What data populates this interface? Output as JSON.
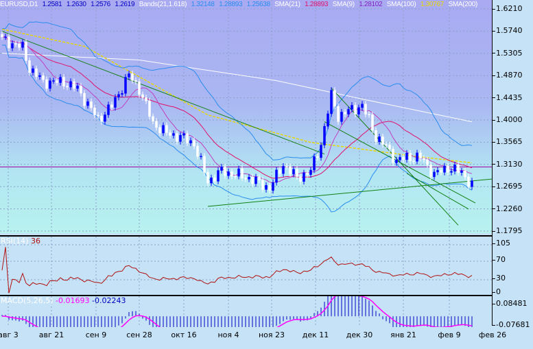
{
  "header": {
    "symbol": "EURUSD,D1",
    "open": "1.2581",
    "high": "1.2630",
    "low": "1.2576",
    "close": "1.2619",
    "bands_label": "Bands(21,1.618)",
    "bands_upper": "1.32148",
    "bands_mid": "1.28893",
    "bands_lower": "1.25638",
    "sma21_label": "SMA(21)",
    "sma21": "1.28893",
    "sma9_label": "SMA(9)",
    "sma9": "1.28102",
    "sma100_label": "SMA(100)",
    "sma100": "1.30767",
    "sma200_label": "SMA(200)"
  },
  "price_axis": [
    "1.6210",
    "1.5740",
    "1.5305",
    "1.4870",
    "1.4435",
    "1.4000",
    "1.3565",
    "1.3130",
    "1.2695",
    "1.2260",
    "1.1795"
  ],
  "rsi": {
    "label": "RSI(14)",
    "value": "36",
    "axis": [
      "105",
      "70",
      "30",
      "0"
    ]
  },
  "macd": {
    "label": "MACD(5,26,5)",
    "value1": "-0.01693",
    "value2": "-0.02243",
    "axis": [
      "0.08481",
      "-0.07681"
    ]
  },
  "dates": [
    "авг 3",
    "авг 21",
    "сен 9",
    "сен 28",
    "окт 16",
    "ноя 4",
    "ноя 23",
    "дек 11",
    "дек 30",
    "янв 21",
    "фев 9",
    "фев 26"
  ],
  "colors": {
    "bull": "#0000ff",
    "sma9": "#e0106a",
    "bands": "#2a8cf0",
    "sma100": "#e8d800",
    "sma200": "#ffffff",
    "trend": "#108010",
    "level": "#a000a0",
    "rsi": "#b01010",
    "macd_signal": "#ff00ff"
  },
  "price_path": [
    [
      0,
      1.5612
    ],
    [
      6,
      1.5451
    ],
    [
      8,
      1.5048
    ],
    [
      12,
      1.4779
    ],
    [
      18,
      1.4779
    ],
    [
      22,
      1.4645
    ],
    [
      28,
      1.4041
    ],
    [
      32,
      1.4309
    ],
    [
      37,
      1.4914
    ],
    [
      40,
      1.4645
    ],
    [
      44,
      1.3974
    ],
    [
      48,
      1.3773
    ],
    [
      52,
      1.3706
    ],
    [
      56,
      1.3571
    ],
    [
      60,
      1.2833
    ],
    [
      64,
      1.3034
    ],
    [
      68,
      1.2967
    ],
    [
      72,
      1.29
    ],
    [
      78,
      1.2698
    ],
    [
      82,
      1.3168
    ],
    [
      86,
      1.29
    ],
    [
      90,
      1.3034
    ],
    [
      93,
      1.3571
    ],
    [
      96,
      1.4511
    ],
    [
      98,
      1.4108
    ],
    [
      102,
      1.4242
    ],
    [
      105,
      1.4309
    ],
    [
      107,
      1.4041
    ],
    [
      109,
      1.3706
    ],
    [
      112,
      1.3504
    ],
    [
      115,
      1.3236
    ],
    [
      118,
      1.3303
    ],
    [
      122,
      1.3303
    ],
    [
      126,
      1.2967
    ],
    [
      130,
      1.3101
    ],
    [
      134,
      1.3007
    ],
    [
      137,
      1.2765
    ]
  ],
  "sma100_path": [
    [
      0,
      1.5813
    ],
    [
      24,
      1.5477
    ],
    [
      60,
      1.4134
    ],
    [
      90,
      1.3597
    ],
    [
      120,
      1.3329
    ],
    [
      137,
      1.3195
    ]
  ],
  "sma200_path": [
    [
      0,
      1.5343
    ],
    [
      40,
      1.5209
    ],
    [
      80,
      1.4806
    ],
    [
      108,
      1.4403
    ],
    [
      137,
      1.4
    ]
  ],
  "level_price": 1.3115,
  "trendlines": [
    [
      [
        0,
        1.5773
      ],
      [
        94,
        1.337
      ]
    ],
    [
      [
        60,
        1.2344
      ],
      [
        143,
        1.288
      ]
    ],
    [
      [
        96,
        1.466
      ],
      [
        133,
        1.1975
      ]
    ],
    [
      [
        94,
        1.4
      ],
      [
        138,
        1.241
      ]
    ],
    [
      [
        118,
        1.299
      ],
      [
        136,
        1.229
      ]
    ]
  ]
}
